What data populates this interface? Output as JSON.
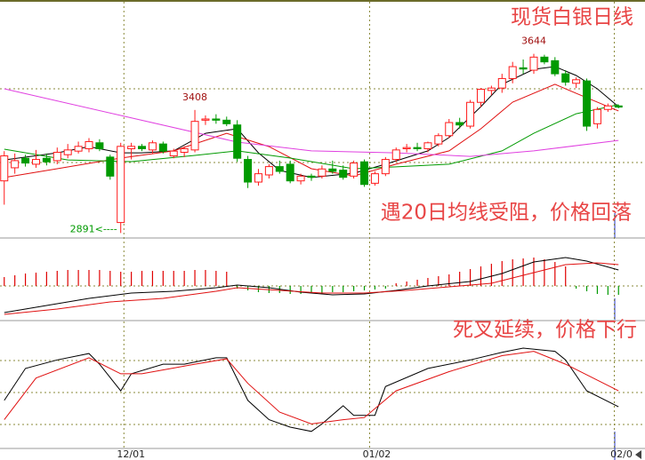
{
  "chart_data": [
    {
      "type": "candlestick",
      "title": "现货白银日线",
      "annotation": "遇20日均线受阻，价格回落",
      "up_color": "#ff1a1a",
      "down_color": "#009a00",
      "xlim": [
        -0.4,
        60.5
      ],
      "ylim": [
        2870,
        3870
      ],
      "xticks": [
        {
          "value": 11.3,
          "label": "12/01"
        },
        {
          "value": 34.5,
          "label": "01/02"
        },
        {
          "value": 57.6,
          "label": "02/0"
        }
      ],
      "candles": [
        [
          3110,
          3235,
          3010,
          3215
        ],
        [
          3165,
          3225,
          3140,
          3195
        ],
        [
          3205,
          3220,
          3170,
          3185
        ],
        [
          3180,
          3240,
          3165,
          3200
        ],
        [
          3205,
          3225,
          3175,
          3190
        ],
        [
          3195,
          3250,
          3180,
          3230
        ],
        [
          3220,
          3265,
          3205,
          3240
        ],
        [
          3235,
          3275,
          3225,
          3255
        ],
        [
          3245,
          3290,
          3230,
          3275
        ],
        [
          3270,
          3285,
          3235,
          3245
        ],
        [
          3210,
          3220,
          3115,
          3130
        ],
        [
          2935,
          3270,
          2891,
          3255
        ],
        [
          3245,
          3270,
          3200,
          3255
        ],
        [
          3255,
          3265,
          3235,
          3245
        ],
        [
          3240,
          3280,
          3225,
          3270
        ],
        [
          3265,
          3275,
          3225,
          3235
        ],
        [
          3215,
          3245,
          3205,
          3235
        ],
        [
          3230,
          3255,
          3210,
          3245
        ],
        [
          3240,
          3408,
          3230,
          3360
        ],
        [
          3365,
          3385,
          3345,
          3370
        ],
        [
          3370,
          3390,
          3350,
          3365
        ],
        [
          3365,
          3380,
          3340,
          3350
        ],
        [
          3345,
          3365,
          3190,
          3205
        ],
        [
          3200,
          3215,
          3080,
          3105
        ],
        [
          3105,
          3160,
          3090,
          3140
        ],
        [
          3135,
          3180,
          3120,
          3170
        ],
        [
          3170,
          3195,
          3140,
          3150
        ],
        [
          3180,
          3195,
          3100,
          3110
        ],
        [
          3110,
          3140,
          3095,
          3130
        ],
        [
          3130,
          3140,
          3110,
          3125
        ],
        [
          3130,
          3175,
          3120,
          3160
        ],
        [
          3160,
          3195,
          3140,
          3150
        ],
        [
          3155,
          3175,
          3115,
          3125
        ],
        [
          3130,
          3195,
          3120,
          3185
        ],
        [
          3190,
          3200,
          3085,
          3095
        ],
        [
          3100,
          3150,
          3090,
          3140
        ],
        [
          3140,
          3210,
          3130,
          3200
        ],
        [
          3200,
          3250,
          3190,
          3240
        ],
        [
          3245,
          3265,
          3230,
          3250
        ],
        [
          3250,
          3270,
          3235,
          3245
        ],
        [
          3245,
          3275,
          3230,
          3270
        ],
        [
          3265,
          3310,
          3255,
          3300
        ],
        [
          3300,
          3370,
          3290,
          3355
        ],
        [
          3355,
          3375,
          3330,
          3345
        ],
        [
          3340,
          3450,
          3330,
          3440
        ],
        [
          3440,
          3500,
          3420,
          3495
        ],
        [
          3490,
          3510,
          3470,
          3500
        ],
        [
          3500,
          3560,
          3480,
          3540
        ],
        [
          3540,
          3610,
          3520,
          3590
        ],
        [
          3585,
          3620,
          3560,
          3580
        ],
        [
          3575,
          3644,
          3560,
          3630
        ],
        [
          3630,
          3640,
          3600,
          3610
        ],
        [
          3615,
          3630,
          3550,
          3560
        ],
        [
          3560,
          3575,
          3510,
          3525
        ],
        [
          3520,
          3545,
          3500,
          3535
        ],
        [
          3530,
          3540,
          3320,
          3340
        ],
        [
          3350,
          3420,
          3330,
          3410
        ],
        [
          3410,
          3435,
          3400,
          3425
        ],
        [
          3425,
          3430,
          3415,
          3420
        ]
      ],
      "labels": [
        {
          "x": 18,
          "y": 3408,
          "label": "3408"
        },
        {
          "x": 50,
          "y": 3644,
          "label": "3644"
        },
        {
          "x": 11,
          "y": 2891,
          "label": "2891<----"
        }
      ],
      "lines": [
        {
          "color": "#000000",
          "x": [
            0,
            5,
            8,
            11,
            13,
            16,
            19,
            22,
            24,
            26,
            29,
            33,
            36,
            40,
            42,
            45,
            47,
            50,
            52,
            54,
            56,
            58
          ],
          "values": [
            3198,
            3228,
            3254,
            3228,
            3228,
            3236,
            3310,
            3329,
            3228,
            3154,
            3124,
            3142,
            3180,
            3236,
            3292,
            3422,
            3516,
            3579,
            3590,
            3553,
            3497,
            3422
          ]
        },
        {
          "color": "#e01010",
          "x": [
            0,
            5,
            11,
            16,
            21,
            25,
            29,
            33,
            37,
            42,
            45,
            48,
            52,
            54,
            58
          ],
          "values": [
            3124,
            3161,
            3206,
            3236,
            3310,
            3254,
            3161,
            3131,
            3180,
            3236,
            3329,
            3441,
            3516,
            3478,
            3404
          ]
        },
        {
          "color": "#009a00",
          "x": [
            0,
            6,
            12,
            18,
            22,
            27,
            33,
            37,
            42,
            47,
            50,
            54,
            58
          ],
          "values": [
            3243,
            3198,
            3191,
            3217,
            3236,
            3206,
            3161,
            3169,
            3180,
            3236,
            3310,
            3392,
            3430
          ]
        },
        {
          "color": "#e040e0",
          "x": [
            0,
            11,
            22,
            29,
            37,
            44,
            50,
            58
          ],
          "values": [
            3497,
            3385,
            3273,
            3236,
            3228,
            3213,
            3236,
            3280
          ]
        }
      ]
    },
    {
      "type": "macd",
      "up_color": "#e00000",
      "down_color": "#009a00",
      "ylim": [
        -38,
        54
      ],
      "bars": [
        10,
        12,
        14,
        15,
        16,
        17,
        18,
        18,
        18,
        18,
        17,
        16,
        16,
        17,
        17,
        17,
        17,
        17,
        18,
        18,
        17,
        16,
        -3,
        -5,
        -7,
        -8,
        -8,
        -9,
        -9,
        -8,
        -8,
        -7,
        -7,
        -6,
        -5,
        -4,
        -3,
        3,
        5,
        7,
        9,
        11,
        13,
        16,
        19,
        22,
        25,
        28,
        30,
        31,
        32,
        30,
        27,
        22,
        -3,
        -6,
        -9,
        -10,
        -10
      ],
      "lines": [
        {
          "color": "#000000",
          "x": [
            0,
            4,
            8,
            12,
            16,
            20,
            22,
            25,
            28,
            31,
            34,
            37,
            40,
            44,
            47,
            50,
            53,
            55,
            58
          ],
          "values": [
            -30,
            -22,
            -14,
            -8,
            -6,
            -2,
            1,
            -2,
            -7,
            -10,
            -9,
            -5,
            0,
            5,
            14,
            27,
            32,
            28,
            18
          ]
        },
        {
          "color": "#e01010",
          "x": [
            0,
            5,
            10,
            15,
            20,
            22,
            26,
            30,
            34,
            38,
            42,
            46,
            50,
            53,
            56,
            58
          ],
          "values": [
            -32,
            -26,
            -18,
            -14,
            -6,
            -2,
            -5,
            -8,
            -8,
            -5,
            -1,
            3,
            15,
            24,
            26,
            24
          ]
        }
      ]
    },
    {
      "type": "kdj",
      "annotation": "死叉延续，价格下行",
      "ylim": [
        -2,
        117
      ],
      "lines": [
        {
          "color": "#000000",
          "x": [
            0,
            2,
            5,
            8,
            9,
            11,
            12,
            15,
            17,
            20,
            21,
            23,
            25,
            27,
            29,
            30,
            32,
            33,
            35,
            36,
            40,
            44,
            47,
            49,
            52,
            53,
            55,
            58
          ],
          "values": [
            43,
            73,
            81,
            87,
            77,
            52,
            68,
            77,
            77,
            83,
            83,
            43,
            25,
            18,
            14,
            21,
            38,
            29,
            29,
            56,
            73,
            81,
            88,
            92,
            89,
            81,
            52,
            37
          ]
        },
        {
          "color": "#e01010",
          "x": [
            0,
            3,
            8,
            11,
            13,
            18,
            21,
            23,
            26,
            29,
            32,
            34,
            37,
            42,
            47,
            50,
            53,
            58
          ],
          "values": [
            25,
            64,
            83,
            68,
            68,
            77,
            82,
            59,
            32,
            21,
            25,
            27,
            52,
            70,
            85,
            89,
            77,
            52
          ]
        }
      ]
    }
  ]
}
